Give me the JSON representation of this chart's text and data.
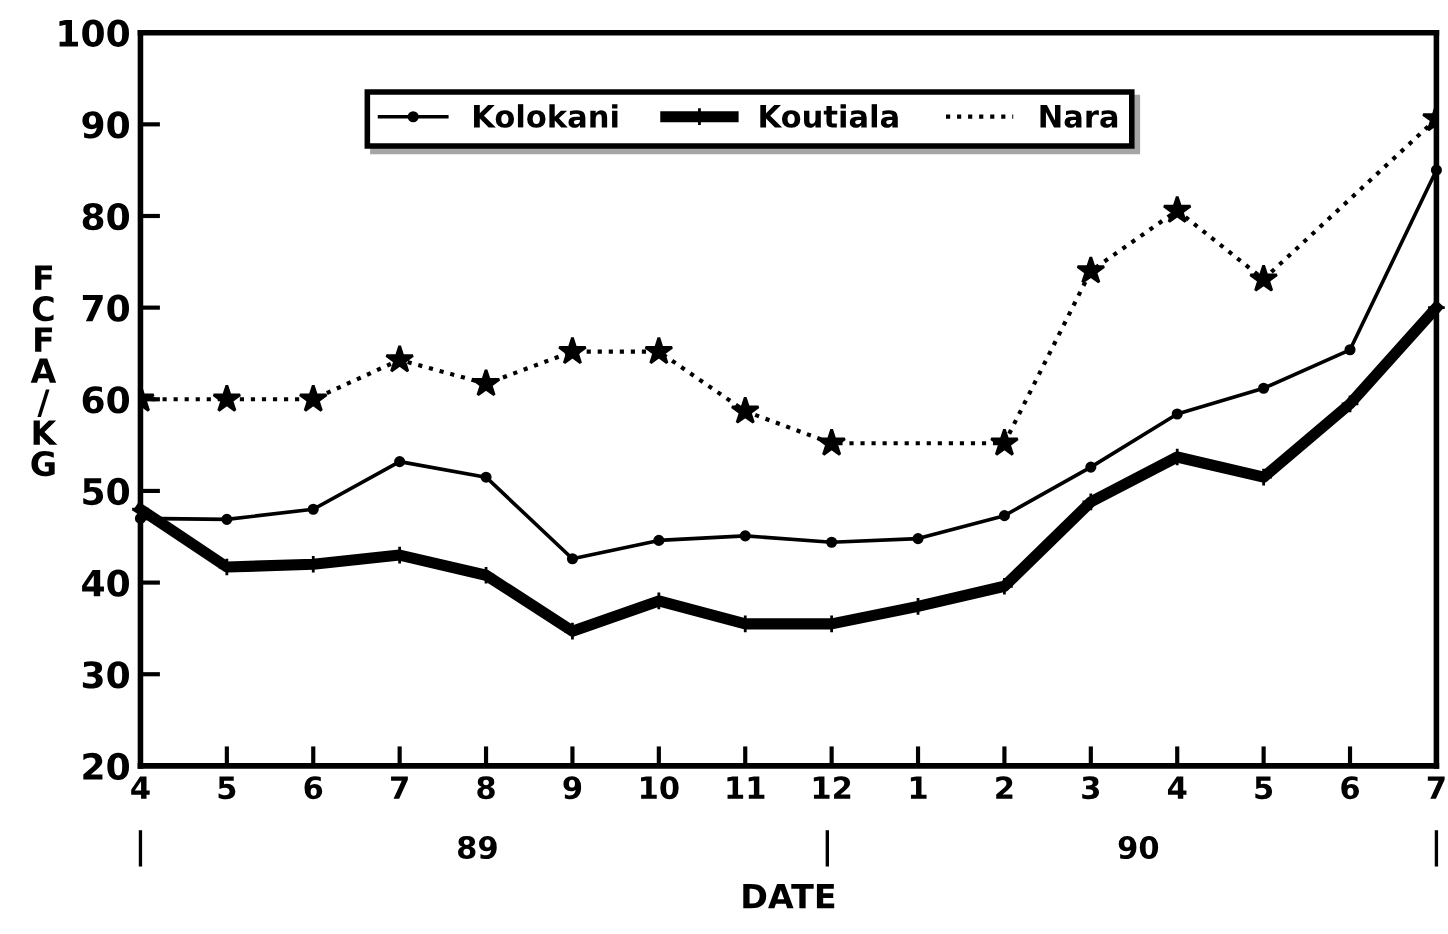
{
  "chart_data": {
    "type": "line",
    "xlabel": "DATE",
    "ylabel": "FCFA/KG",
    "categories": [
      "4",
      "5",
      "6",
      "7",
      "8",
      "9",
      "10",
      "11",
      "12",
      "1",
      "2",
      "3",
      "4",
      "5",
      "6",
      "7"
    ],
    "series": [
      {
        "name": "Kolokani",
        "color": "#000000",
        "marker": "circle",
        "line_style": "solid",
        "values": [
          47,
          46.9,
          48,
          53.2,
          51.5,
          42.6,
          44.6,
          45.1,
          44.4,
          44.8,
          47.3,
          52.6,
          58.4,
          61.2,
          65.4,
          85
        ]
      },
      {
        "name": "Koutiala",
        "color": "#000000",
        "marker": "cross",
        "line_style": "solid",
        "values": [
          48,
          41.7,
          42,
          43,
          40.8,
          34.7,
          38,
          35.5,
          35.5,
          37.4,
          39.6,
          48.8,
          53.7,
          51.5,
          59.5,
          70
        ]
      },
      {
        "name": "Nara",
        "color": "#000000",
        "marker": "star",
        "line_style": "dotted",
        "values": [
          60,
          60,
          60,
          64.3,
          61.7,
          65.2,
          65.2,
          58.7,
          55.2,
          null,
          55.2,
          74,
          80.6,
          73.1,
          null,
          90.6
        ]
      }
    ],
    "ylim": [
      20,
      100
    ],
    "yticks": [
      20,
      30,
      40,
      50,
      60,
      70,
      80,
      90,
      100
    ],
    "legend": "top",
    "grid": false,
    "annotations": [
      "89",
      "90"
    ]
  }
}
